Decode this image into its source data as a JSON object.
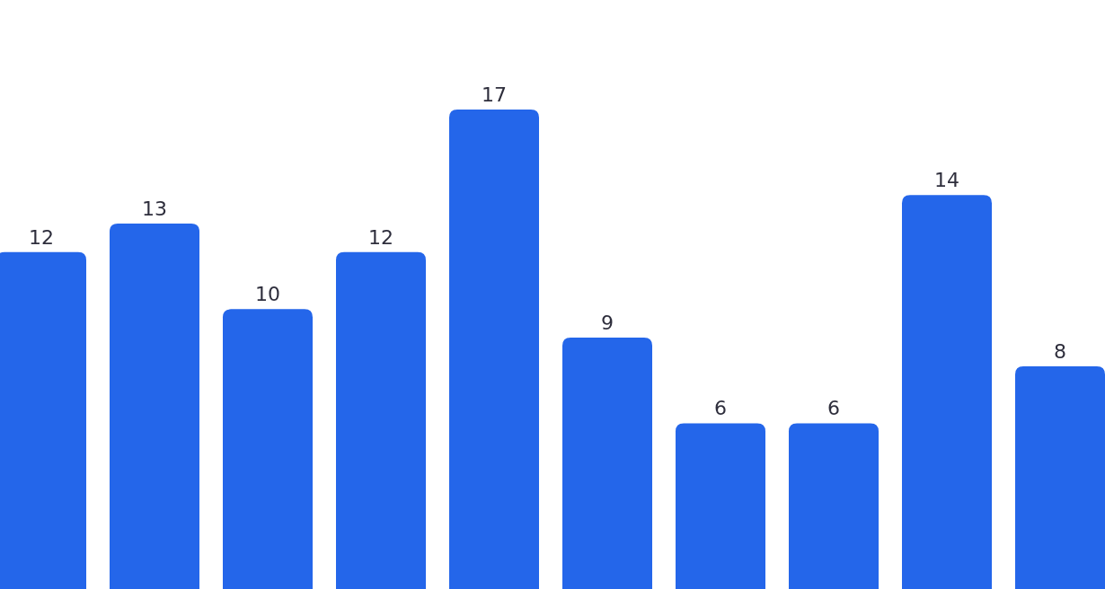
{
  "chart_data": {
    "type": "bar",
    "categories": [
      null,
      null,
      null,
      null,
      null,
      null,
      null,
      null,
      null,
      null
    ],
    "values": [
      12,
      13,
      10,
      12,
      17,
      9,
      6,
      6,
      14,
      8
    ],
    "color": "#2466ea",
    "data_labels": true
  }
}
